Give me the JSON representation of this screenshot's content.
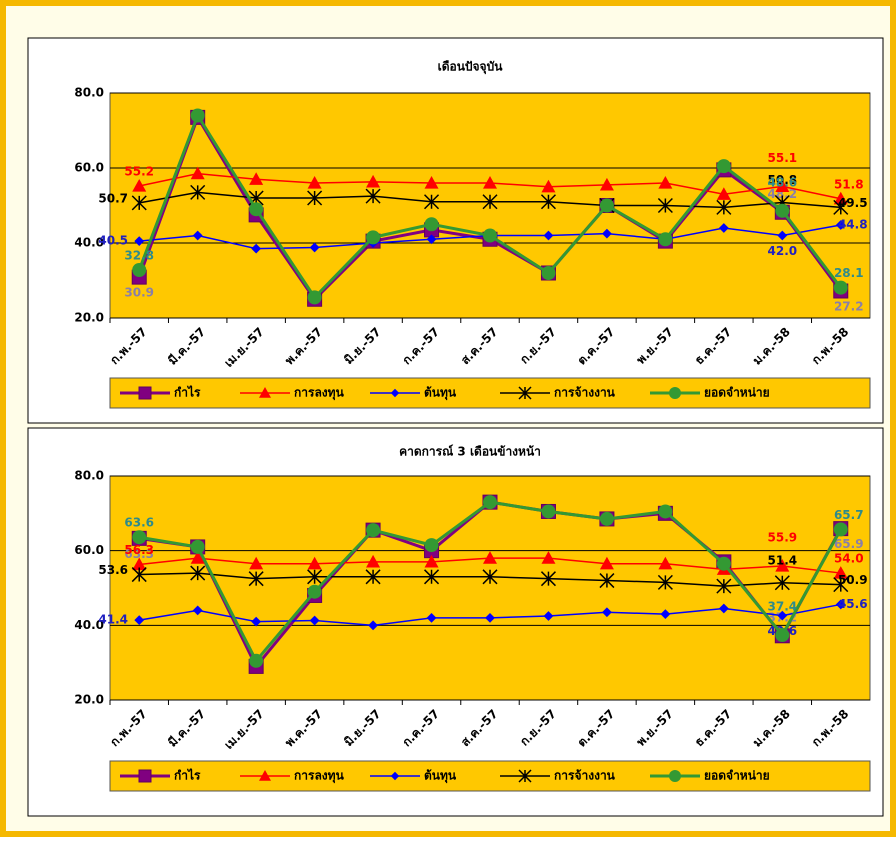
{
  "chart_data": [
    {
      "type": "line",
      "title": "เดือนปัจจุบัน",
      "categories": [
        "ก.พ.-57",
        "มี.ค.-57",
        "เม.ย.-57",
        "พ.ค.-57",
        "มิ.ย.-57",
        "ก.ค.-57",
        "ส.ค.-57",
        "ก.ย.-57",
        "ต.ค.-57",
        "พ.ย.-57",
        "ธ.ค.-57",
        "ม.ค.-58",
        "ก.พ.-58"
      ],
      "ylim": [
        20,
        80
      ],
      "yticks": [
        {
          "value": 20,
          "label": "20.0"
        },
        {
          "value": 40,
          "label": "40.0"
        },
        {
          "value": 60,
          "label": "60.0"
        },
        {
          "value": 80,
          "label": "80.0"
        }
      ],
      "grid": true,
      "legend": "bottom",
      "series": [
        {
          "name": "กำไร",
          "color": "#800080",
          "values": [
            30.9,
            73.5,
            47.5,
            25,
            40.5,
            43.5,
            41,
            32,
            50,
            40.5,
            59.5,
            48.2,
            27.2
          ],
          "value_labels": [
            "30.9",
            null,
            null,
            null,
            null,
            null,
            null,
            null,
            null,
            null,
            null,
            "48.2",
            "27.2"
          ]
        },
        {
          "name": "การลงทุน",
          "color": "#ff0000",
          "values": [
            55.2,
            58.5,
            57,
            56,
            56.3,
            56,
            56,
            55,
            55.5,
            56,
            53,
            55.1,
            51.8
          ],
          "value_labels": [
            "55.2",
            null,
            null,
            null,
            null,
            null,
            null,
            null,
            null,
            null,
            null,
            "55.1",
            "51.8"
          ]
        },
        {
          "name": "ต้นทุน",
          "color": "#0000ff",
          "values": [
            40.5,
            42,
            38.5,
            38.8,
            40,
            41,
            42,
            42,
            42.5,
            41,
            44,
            42.0,
            44.8
          ],
          "value_labels": [
            "40.5",
            null,
            null,
            null,
            null,
            null,
            null,
            null,
            null,
            null,
            null,
            "42.0",
            "44.8"
          ]
        },
        {
          "name": "การจ้างงาน",
          "color": "#000000",
          "values": [
            50.7,
            53.5,
            52,
            52,
            52.5,
            51,
            51,
            51,
            50,
            50,
            49.5,
            50.8,
            49.5
          ],
          "value_labels": [
            "50.7",
            null,
            null,
            null,
            null,
            null,
            null,
            null,
            null,
            null,
            null,
            "50.8",
            "49.5"
          ]
        },
        {
          "name": "ยอดจำหน่าย",
          "color": "#339933",
          "values": [
            32.8,
            74,
            49,
            25.5,
            41.5,
            45,
            42,
            32,
            50,
            41,
            60.5,
            48.6,
            28.1
          ],
          "value_labels": [
            "32.8",
            null,
            null,
            null,
            null,
            null,
            null,
            null,
            null,
            null,
            null,
            "48.6",
            "28.1"
          ]
        }
      ]
    },
    {
      "type": "line",
      "title": "คาดการณ์ 3 เดือนข้างหน้า",
      "categories": [
        "ก.พ.-57",
        "มี.ค.-57",
        "เม.ย.-57",
        "พ.ค.-57",
        "มิ.ย.-57",
        "ก.ค.-57",
        "ส.ค.-57",
        "ก.ย.-57",
        "ต.ค.-57",
        "พ.ย.-57",
        "ธ.ค.-57",
        "ม.ค.-58",
        "ก.พ.-58"
      ],
      "ylim": [
        20,
        80
      ],
      "yticks": [
        {
          "value": 20,
          "label": "20.0"
        },
        {
          "value": 40,
          "label": "40.0"
        },
        {
          "value": 60,
          "label": "60.0"
        },
        {
          "value": 80,
          "label": "80.0"
        }
      ],
      "grid": true,
      "legend": "bottom",
      "series": [
        {
          "name": "กำไร",
          "color": "#800080",
          "values": [
            63.3,
            61,
            29,
            48,
            65.5,
            60,
            73,
            70.5,
            68.5,
            70,
            57,
            37.2,
            65.9
          ],
          "value_labels": [
            "63.3",
            null,
            null,
            null,
            null,
            null,
            null,
            null,
            null,
            null,
            null,
            "37.2",
            "65.9"
          ]
        },
        {
          "name": "การลงทุน",
          "color": "#ff0000",
          "values": [
            56.3,
            58,
            56.5,
            56.5,
            57,
            57,
            58,
            58,
            56.5,
            56.5,
            55,
            55.9,
            54.0
          ],
          "value_labels": [
            "56.3",
            null,
            null,
            null,
            null,
            null,
            null,
            null,
            null,
            null,
            null,
            "55.9",
            "54.0"
          ]
        },
        {
          "name": "ต้นทุน",
          "color": "#0000ff",
          "values": [
            41.4,
            44,
            41,
            41.3,
            40,
            42,
            42,
            42.5,
            43.5,
            43,
            44.5,
            42.6,
            45.6
          ],
          "value_labels": [
            "41.4",
            null,
            null,
            null,
            null,
            null,
            null,
            null,
            null,
            null,
            null,
            "42.6",
            "45.6"
          ]
        },
        {
          "name": "การจ้างงาน",
          "color": "#000000",
          "values": [
            53.6,
            54,
            52.5,
            53,
            53,
            53,
            53,
            52.5,
            52,
            51.5,
            50.5,
            51.4,
            50.9
          ],
          "value_labels": [
            "53.6",
            null,
            null,
            null,
            null,
            null,
            null,
            null,
            null,
            null,
            null,
            "51.4",
            "50.9"
          ]
        },
        {
          "name": "ยอดจำหน่าย",
          "color": "#339933",
          "values": [
            63.6,
            61,
            30.5,
            49,
            65.5,
            61.5,
            73,
            70.5,
            68.5,
            70.5,
            56.5,
            37.4,
            65.7
          ],
          "value_labels": [
            "63.6",
            null,
            null,
            null,
            null,
            null,
            null,
            null,
            null,
            null,
            null,
            "37.4",
            "65.7"
          ]
        }
      ]
    }
  ]
}
